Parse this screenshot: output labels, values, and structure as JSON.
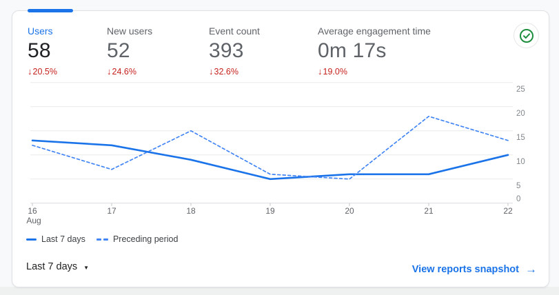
{
  "metrics": [
    {
      "label": "Users",
      "value": "58",
      "delta": "20.5%",
      "selected": true
    },
    {
      "label": "New users",
      "value": "52",
      "delta": "24.6%",
      "selected": false
    },
    {
      "label": "Event count",
      "value": "393",
      "delta": "32.6%",
      "selected": false
    },
    {
      "label": "Average engagement time",
      "value": "0m 17s",
      "delta": "19.0%",
      "selected": false
    }
  ],
  "icons": {
    "delta_down": "↓",
    "caret_down": "▼",
    "arrow_right": "→",
    "check_circle": "circled-checkmark"
  },
  "colors": {
    "accent_blue": "#1a73e8",
    "preceding_blue": "#4285f4",
    "delta_red": "#c5221f",
    "check_green": "#1e8e3e"
  },
  "chart_data": {
    "type": "line",
    "categories": [
      "16",
      "17",
      "18",
      "19",
      "20",
      "21",
      "22"
    ],
    "x_axis_month": "Aug",
    "series": [
      {
        "name": "Last 7 days",
        "style": "solid",
        "color": "#1a73e8",
        "values": [
          13,
          12,
          9,
          5,
          6,
          6,
          10
        ]
      },
      {
        "name": "Preceding period",
        "style": "dashed",
        "color": "#4285f4",
        "values": [
          12,
          7,
          15,
          6,
          5,
          18,
          13
        ]
      }
    ],
    "ylim": [
      0,
      25
    ],
    "yticks": [
      0,
      5,
      10,
      15,
      20,
      25
    ],
    "grid": true,
    "legend_position": "bottom-left"
  },
  "footer": {
    "date_range": "Last 7 days",
    "link": "View reports snapshot"
  }
}
